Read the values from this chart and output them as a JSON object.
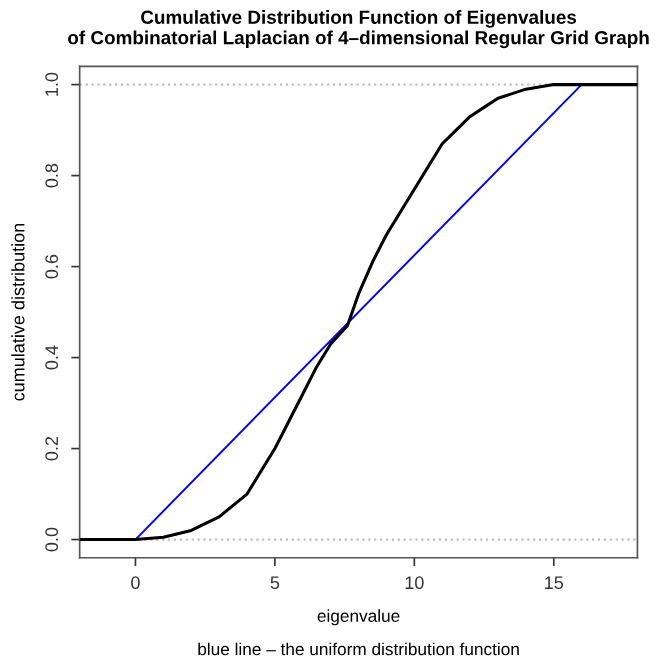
{
  "chart_data": {
    "type": "line",
    "title": "Cumulative Distribution Function of Eigenvalues\nof Combinatorial Laplacian of 4–dimensional Regular Grid Graph",
    "xlabel": "eigenvalue",
    "ylabel": "cumulative distribution",
    "annotations": [
      "blue line – the uniform distribution function"
    ],
    "series": [
      {
        "color": "#000000",
        "x": [
          -2,
          0,
          1,
          2,
          3,
          4,
          4.5,
          5,
          5.5,
          6,
          6.5,
          7,
          7.6,
          8,
          8.5,
          9,
          9.5,
          10,
          10.5,
          11,
          11.5,
          12,
          12.5,
          13,
          14,
          15,
          16,
          18
        ],
        "values": [
          0,
          0,
          0.005,
          0.02,
          0.05,
          0.1,
          0.15,
          0.2,
          0.26,
          0.32,
          0.38,
          0.43,
          0.47,
          0.54,
          0.61,
          0.67,
          0.72,
          0.77,
          0.82,
          0.87,
          0.9,
          0.93,
          0.95,
          0.97,
          0.99,
          1.0,
          1.0,
          1.0
        ]
      },
      {
        "color": "#0000ff",
        "x": [
          0,
          16
        ],
        "values": [
          0,
          1
        ]
      }
    ],
    "ref_lines": [
      {
        "axis": "y",
        "value": 0,
        "color": "#bebebe",
        "line_style": "dotted"
      },
      {
        "axis": "y",
        "value": 1,
        "color": "#bebebe",
        "line_style": "dotted"
      }
    ],
    "xlim": [
      -2,
      18
    ],
    "ylim": [
      -0.04,
      1.04
    ],
    "xticks": [
      0,
      5,
      10,
      15
    ],
    "yticks": [
      {
        "value": 0,
        "label": "0.0"
      },
      {
        "value": 0.2,
        "label": "0.2"
      },
      {
        "value": 0.4,
        "label": "0.4"
      },
      {
        "value": 0.6,
        "label": "0.6"
      },
      {
        "value": 0.8,
        "label": "0.8"
      },
      {
        "value": 1,
        "label": "1.0"
      }
    ],
    "grid": false,
    "legend": false,
    "line_style": "solid",
    "marker": "none"
  }
}
